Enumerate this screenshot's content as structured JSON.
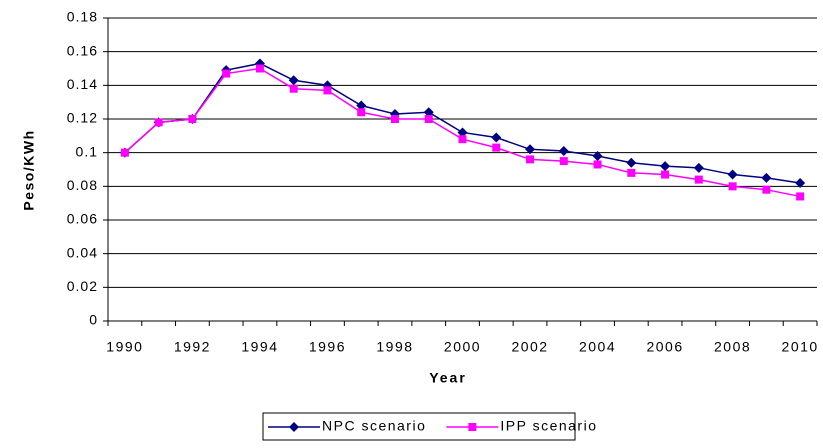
{
  "chart_data": {
    "type": "line",
    "xlabel": "Year",
    "ylabel": "Peso/KWh",
    "categories": [
      "1990",
      null,
      "1992",
      null,
      "1994",
      null,
      "1996",
      null,
      "1998",
      null,
      "2000",
      null,
      "2002",
      null,
      "2004",
      null,
      "2006",
      null,
      "2008",
      null,
      "2010"
    ],
    "series": [
      {
        "name": "NPC scenario",
        "color": "#000080",
        "marker": "diamond",
        "values": [
          0.1,
          0.118,
          0.12,
          0.149,
          0.153,
          0.143,
          0.14,
          0.128,
          0.123,
          0.124,
          0.112,
          0.109,
          0.102,
          0.101,
          0.098,
          0.094,
          0.092,
          0.091,
          0.087,
          0.085,
          0.082
        ]
      },
      {
        "name": "IPP scenario",
        "color": "#ff00ff",
        "marker": "square",
        "values": [
          0.1,
          0.118,
          0.12,
          0.147,
          0.15,
          0.138,
          0.137,
          0.124,
          0.12,
          0.12,
          0.108,
          0.103,
          0.096,
          0.095,
          0.093,
          0.088,
          0.087,
          0.084,
          0.08,
          0.078,
          0.074
        ]
      }
    ],
    "ylim": [
      0,
      0.18
    ],
    "yticks": [
      0,
      0.02,
      0.04,
      0.06,
      0.08,
      0.1,
      0.12,
      0.14,
      0.16,
      0.18
    ],
    "grid": true,
    "legend": "bottom"
  }
}
